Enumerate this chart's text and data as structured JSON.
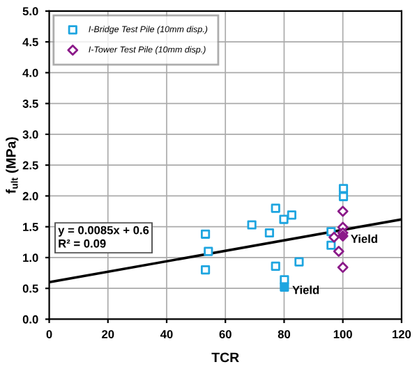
{
  "chart_data": {
    "type": "scatter",
    "xlabel": "TCR",
    "ylabel": "f$_{ult}$ (MPa)",
    "xlim": [
      0,
      120
    ],
    "ylim": [
      0,
      5
    ],
    "xticks": [
      0,
      20,
      40,
      60,
      80,
      100,
      120
    ],
    "yticks": [
      {
        "value": 0,
        "label": "0.0"
      },
      {
        "value": 0.5,
        "label": "0.5"
      },
      {
        "value": 1,
        "label": "1.0"
      },
      {
        "value": 1.5,
        "label": "1.5"
      },
      {
        "value": 2,
        "label": "2.0"
      },
      {
        "value": 2.5,
        "label": "2.5"
      },
      {
        "value": 3,
        "label": "3.0"
      },
      {
        "value": 3.5,
        "label": "3.5"
      },
      {
        "value": 4,
        "label": "4.0"
      },
      {
        "value": 4.5,
        "label": "4.5"
      },
      {
        "value": 5,
        "label": "5.0"
      }
    ],
    "grid": true,
    "legend": "top left",
    "series": [
      {
        "name": "I-Bridge Test Pile (10mm disp.)",
        "color": "#1ea5e0",
        "marker": "square",
        "x": [
          53.2,
          53.2,
          54.2,
          69,
          75,
          77.1,
          77.1,
          79.9,
          82.6,
          80.1,
          85.1,
          96,
          96,
          100.2,
          100.2
        ],
        "values": [
          1.38,
          0.8,
          1.1,
          1.53,
          1.4,
          1.8,
          0.86,
          1.62,
          1.69,
          0.64,
          0.93,
          1.42,
          1.2,
          2.12,
          1.99
        ]
      },
      {
        "name": "I-Tower Test Pile (10mm disp.)",
        "color": "#8b1a89",
        "marker": "diamond",
        "x": [
          100,
          100,
          97,
          98.6,
          100,
          100
        ],
        "values": [
          1.75,
          1.49,
          1.33,
          1.1,
          0.84,
          1.4
        ]
      },
      {
        "color": "#1ea5e0",
        "marker": "square",
        "x": [
          80.1
        ],
        "values": [
          0.52
        ]
      },
      {
        "color": "#8b1a89",
        "marker": "diamond",
        "x": [
          100
        ],
        "values": [
          1.35
        ]
      },
      {
        "type": "line",
        "color": "#000000",
        "marker": "none",
        "x": [
          0,
          120
        ],
        "values": [
          0.6,
          1.62
        ]
      }
    ],
    "annotations": [
      {
        "text": "Yield",
        "x": 80.1,
        "y": 0.52
      },
      {
        "text": "Yield",
        "x": 100,
        "y": 1.35
      },
      "y = 0.0085x + 0.6\nR² = 0.09"
    ]
  }
}
